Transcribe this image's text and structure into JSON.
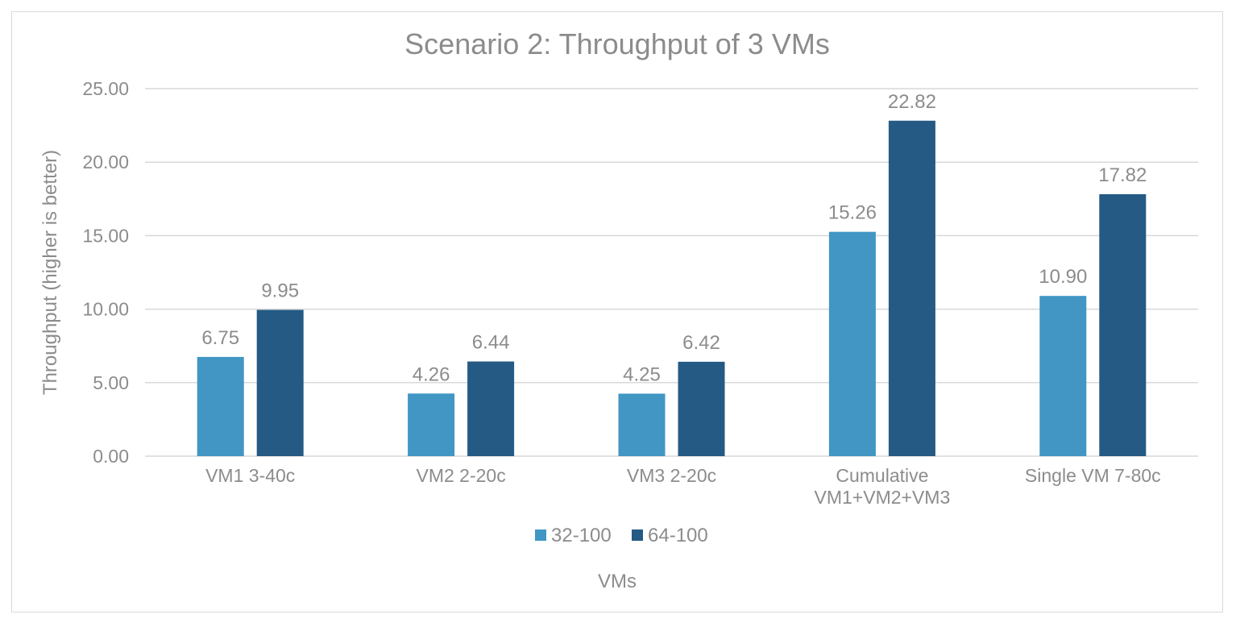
{
  "chart_data": {
    "type": "bar",
    "title": "Scenario 2: Throughput of 3 VMs",
    "xlabel": "VMs",
    "ylabel": "Throughput (higher is better)",
    "ylim": [
      0,
      25
    ],
    "yticks": [
      "0.00",
      "5.00",
      "10.00",
      "15.00",
      "20.00",
      "25.00"
    ],
    "categories": [
      [
        "VM1 3-40c"
      ],
      [
        "VM2 2-20c"
      ],
      [
        "VM3 2-20c"
      ],
      [
        "Cumulative",
        "VM1+VM2+VM3"
      ],
      [
        "Single VM 7-80c"
      ]
    ],
    "series": [
      {
        "name": "32-100",
        "color": "#4196c3",
        "values": [
          6.75,
          4.26,
          4.25,
          15.26,
          10.9
        ],
        "labels": [
          "6.75",
          "4.26",
          "4.25",
          "15.26",
          "10.90"
        ]
      },
      {
        "name": "64-100",
        "color": "#245a84",
        "values": [
          9.95,
          6.44,
          6.42,
          22.82,
          17.82
        ],
        "labels": [
          "9.95",
          "6.44",
          "6.42",
          "22.82",
          "17.82"
        ]
      }
    ],
    "grid": true,
    "legend": "bottom"
  }
}
